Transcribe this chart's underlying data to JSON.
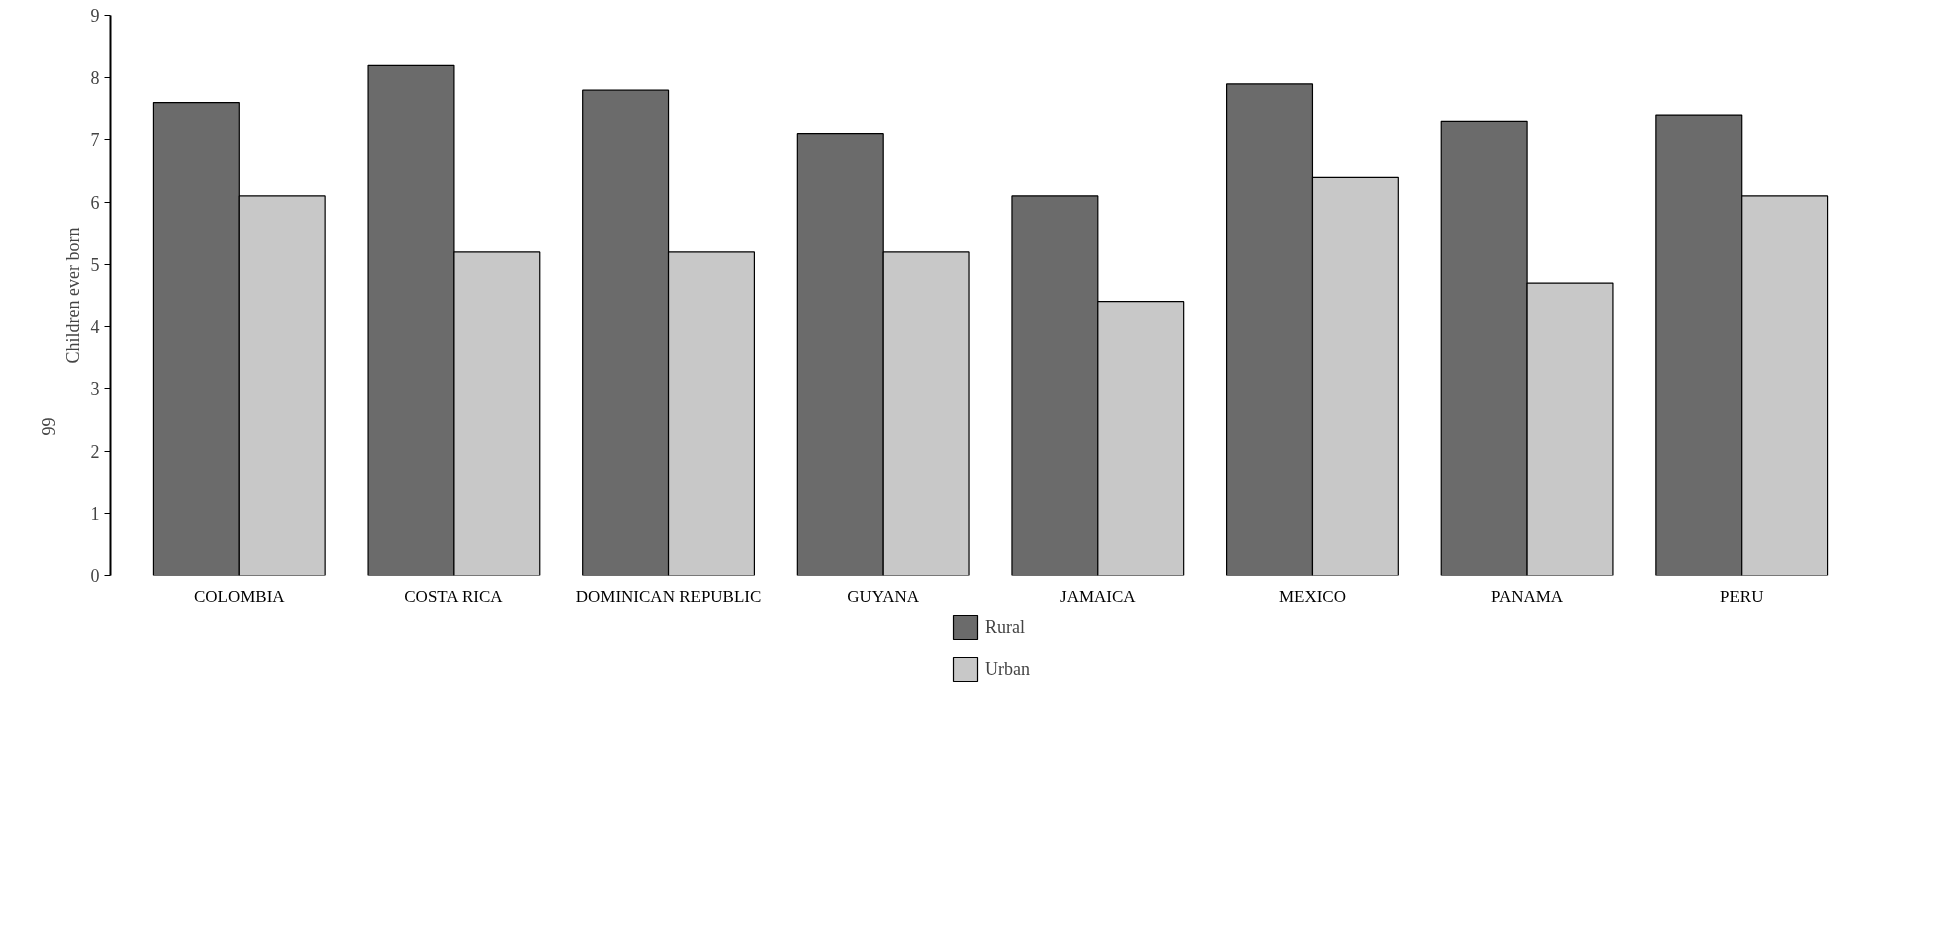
{
  "chart_data": {
    "type": "bar",
    "ylabel": "Children ever born",
    "categories": [
      "COLOMBIA",
      "COSTA RICA",
      "DOMINICAN REPUBLIC",
      "GUYANA",
      "JAMAICA",
      "MEXICO",
      "PANAMA",
      "PERU"
    ],
    "series": [
      {
        "name": "Rural",
        "color": "#6b6b6b",
        "values": [
          7.6,
          8.2,
          7.8,
          7.1,
          6.1,
          7.9,
          7.3,
          7.4
        ]
      },
      {
        "name": "Urban",
        "color": "#c8c8c8",
        "values": [
          6.1,
          5.2,
          5.2,
          5.2,
          4.4,
          6.4,
          4.7,
          6.1
        ]
      }
    ],
    "ylim": [
      0,
      9
    ],
    "yticks": [
      0,
      1,
      2,
      3,
      4,
      5,
      6,
      7,
      8,
      9
    ],
    "grid": false,
    "legend": "bottom",
    "annotations": [
      "99"
    ]
  }
}
